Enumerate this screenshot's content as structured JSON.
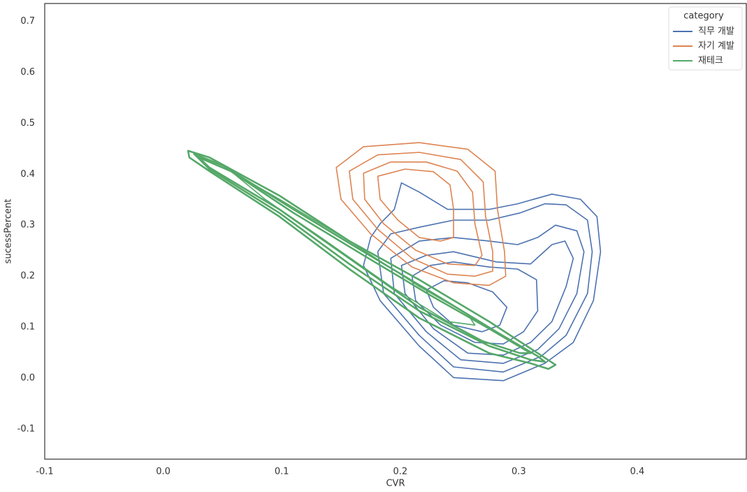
{
  "chart_data": {
    "type": "kde-contour",
    "x_label": "CVR",
    "y_label": "sucessPercent",
    "legend_title": "category",
    "legend_position": "upper right",
    "xlim": [
      -0.1,
      0.492
    ],
    "ylim": [
      -0.159,
      0.735
    ],
    "xticks": [
      -0.1,
      {
        "value": 0,
        "label": "0.0"
      },
      0.1,
      0.2,
      0.3,
      0.4
    ],
    "yticks": [
      -0.1,
      {
        "value": 0,
        "label": "0.0"
      },
      0.1,
      0.2,
      0.3,
      0.4,
      0.5,
      0.6,
      0.7
    ],
    "series": [
      {
        "name": "직무 개발",
        "color": "#4c72b0",
        "contours": [
          {
            "x": [
              0.175,
              0.169,
              0.183,
              0.216,
              0.245,
              0.287,
              0.322,
              0.346,
              0.363,
              0.369,
              0.366,
              0.352,
              0.328,
              0.299,
              0.275,
              0.24,
              0.216,
              0.201,
              0.195,
              0.183
            ],
            "y": [
              0.276,
              0.221,
              0.152,
              0.063,
              0.001,
              -0.005,
              0.029,
              0.07,
              0.152,
              0.248,
              0.317,
              0.351,
              0.361,
              0.342,
              0.331,
              0.331,
              0.365,
              0.383,
              0.331,
              0.303
            ]
          },
          {
            "x": [
              0.181,
              0.186,
              0.216,
              0.245,
              0.287,
              0.319,
              0.34,
              0.358,
              0.362,
              0.358,
              0.34,
              0.322,
              0.301,
              0.275,
              0.245,
              0.216,
              0.192
            ],
            "y": [
              0.248,
              0.166,
              0.084,
              0.022,
              0.012,
              0.043,
              0.084,
              0.166,
              0.248,
              0.31,
              0.34,
              0.342,
              0.324,
              0.31,
              0.31,
              0.296,
              0.283
            ]
          },
          {
            "x": [
              0.192,
              0.195,
              0.222,
              0.251,
              0.287,
              0.316,
              0.334,
              0.349,
              0.355,
              0.349,
              0.331,
              0.316,
              0.299,
              0.275,
              0.245,
              0.216
            ],
            "y": [
              0.235,
              0.166,
              0.091,
              0.036,
              0.029,
              0.056,
              0.097,
              0.166,
              0.248,
              0.289,
              0.3,
              0.276,
              0.262,
              0.269,
              0.276,
              0.269
            ]
          },
          {
            "x": [
              0.201,
              0.204,
              0.228,
              0.257,
              0.287,
              0.31,
              0.328,
              0.34,
              0.346,
              0.339,
              0.328,
              0.31,
              0.281,
              0.245,
              0.222
            ],
            "y": [
              0.221,
              0.166,
              0.097,
              0.049,
              0.045,
              0.07,
              0.111,
              0.18,
              0.235,
              0.269,
              0.262,
              0.224,
              0.228,
              0.248,
              0.241
            ]
          },
          {
            "x": [
              0.21,
              0.213,
              0.234,
              0.263,
              0.287,
              0.304,
              0.316,
              0.315,
              0.299,
              0.275,
              0.245,
              0.225
            ],
            "y": [
              0.2,
              0.152,
              0.104,
              0.07,
              0.067,
              0.091,
              0.132,
              0.193,
              0.214,
              0.218,
              0.228,
              0.221
            ]
          },
          {
            "x": [
              0.222,
              0.228,
              0.245,
              0.269,
              0.284,
              0.29,
              0.278,
              0.257,
              0.237
            ],
            "y": [
              0.173,
              0.139,
              0.104,
              0.091,
              0.104,
              0.139,
              0.169,
              0.187,
              0.191
            ]
          }
        ]
      },
      {
        "name": "자기 계발",
        "color": "#dd8452",
        "contours": [
          {
            "x": [
              0.146,
              0.169,
              0.216,
              0.257,
              0.28,
              0.282,
              0.288,
              0.289,
              0.275,
              0.245,
              0.21,
              0.175,
              0.15
            ],
            "y": [
              0.413,
              0.454,
              0.462,
              0.449,
              0.406,
              0.331,
              0.248,
              0.2,
              0.182,
              0.187,
              0.218,
              0.283,
              0.351
            ]
          },
          {
            "x": [
              0.157,
              0.181,
              0.216,
              0.251,
              0.27,
              0.272,
              0.278,
              0.278,
              0.263,
              0.24,
              0.21,
              0.181,
              0.16
            ],
            "y": [
              0.406,
              0.438,
              0.443,
              0.429,
              0.385,
              0.317,
              0.248,
              0.21,
              0.2,
              0.204,
              0.235,
              0.292,
              0.351
            ]
          },
          {
            "x": [
              0.169,
              0.192,
              0.222,
              0.248,
              0.261,
              0.263,
              0.269,
              0.263,
              0.24,
              0.213,
              0.186,
              0.17
            ],
            "y": [
              0.402,
              0.424,
              0.424,
              0.406,
              0.365,
              0.303,
              0.241,
              0.221,
              0.224,
              0.251,
              0.303,
              0.351
            ]
          },
          {
            "x": [
              0.181,
              0.204,
              0.228,
              0.242,
              0.245,
              0.245,
              0.234,
              0.216,
              0.198,
              0.183
            ],
            "y": [
              0.396,
              0.41,
              0.405,
              0.379,
              0.331,
              0.276,
              0.269,
              0.276,
              0.31,
              0.351
            ]
          }
        ]
      },
      {
        "name": "재테크",
        "color": "#55a868",
        "contours": [
          {
            "x": [
              0.021,
              0.039,
              0.098,
              0.157,
              0.216,
              0.275,
              0.316,
              0.331,
              0.325,
              0.31,
              0.275,
              0.216,
              0.157,
              0.098,
              0.039,
              0.022
            ],
            "y": [
              0.446,
              0.433,
              0.358,
              0.269,
              0.193,
              0.111,
              0.049,
              0.026,
              0.018,
              0.029,
              0.049,
              0.118,
              0.214,
              0.317,
              0.406,
              0.433
            ]
          },
          {
            "x": [
              0.026,
              0.051,
              0.11,
              0.169,
              0.228,
              0.281,
              0.316,
              0.322,
              0.31,
              0.275,
              0.216,
              0.157,
              0.098,
              0.039
            ],
            "y": [
              0.44,
              0.416,
              0.331,
              0.248,
              0.166,
              0.091,
              0.043,
              0.032,
              0.036,
              0.063,
              0.132,
              0.224,
              0.324,
              0.41
            ]
          },
          {
            "x": [
              0.03,
              0.057,
              0.11,
              0.169,
              0.228,
              0.275,
              0.31,
              0.301,
              0.269,
              0.216,
              0.157,
              0.098,
              0.039
            ],
            "y": [
              0.433,
              0.406,
              0.324,
              0.241,
              0.159,
              0.097,
              0.049,
              0.049,
              0.073,
              0.139,
              0.235,
              0.331,
              0.413
            ]
          },
          {
            "x": [
              0.057,
              0.098,
              0.157,
              0.216,
              0.257,
              0.263,
              0.24,
              0.192,
              0.133,
              0.086
            ],
            "y": [
              0.406,
              0.351,
              0.269,
              0.18,
              0.125,
              0.104,
              0.111,
              0.18,
              0.276,
              0.351
            ]
          }
        ]
      }
    ]
  }
}
